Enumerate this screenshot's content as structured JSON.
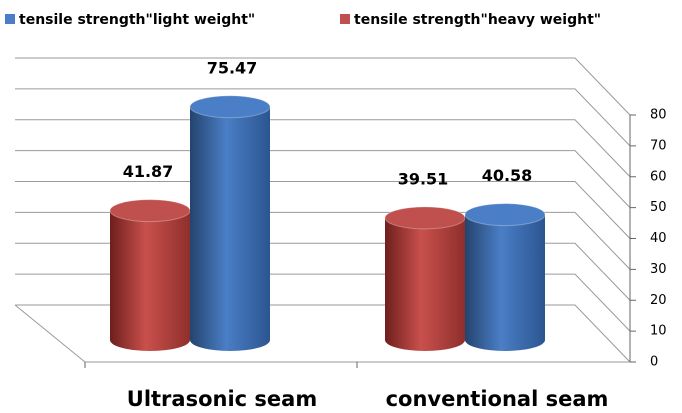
{
  "chart_data": {
    "type": "bar3d",
    "categories": [
      "Ultrasonic seam",
      "conventional seam"
    ],
    "series": [
      {
        "name": "tensile strength\"light weight\"",
        "color": "#4a7ec6",
        "values": [
          75.47,
          40.58
        ]
      },
      {
        "name": "tensile strength\"heavy weight\"",
        "color": "#c0504d",
        "values": [
          41.87,
          39.51
        ]
      }
    ],
    "ylim": [
      0,
      80
    ],
    "yticks": [
      0,
      10,
      20,
      30,
      40,
      50,
      60,
      70,
      80
    ],
    "grid": true,
    "legend": "top"
  }
}
